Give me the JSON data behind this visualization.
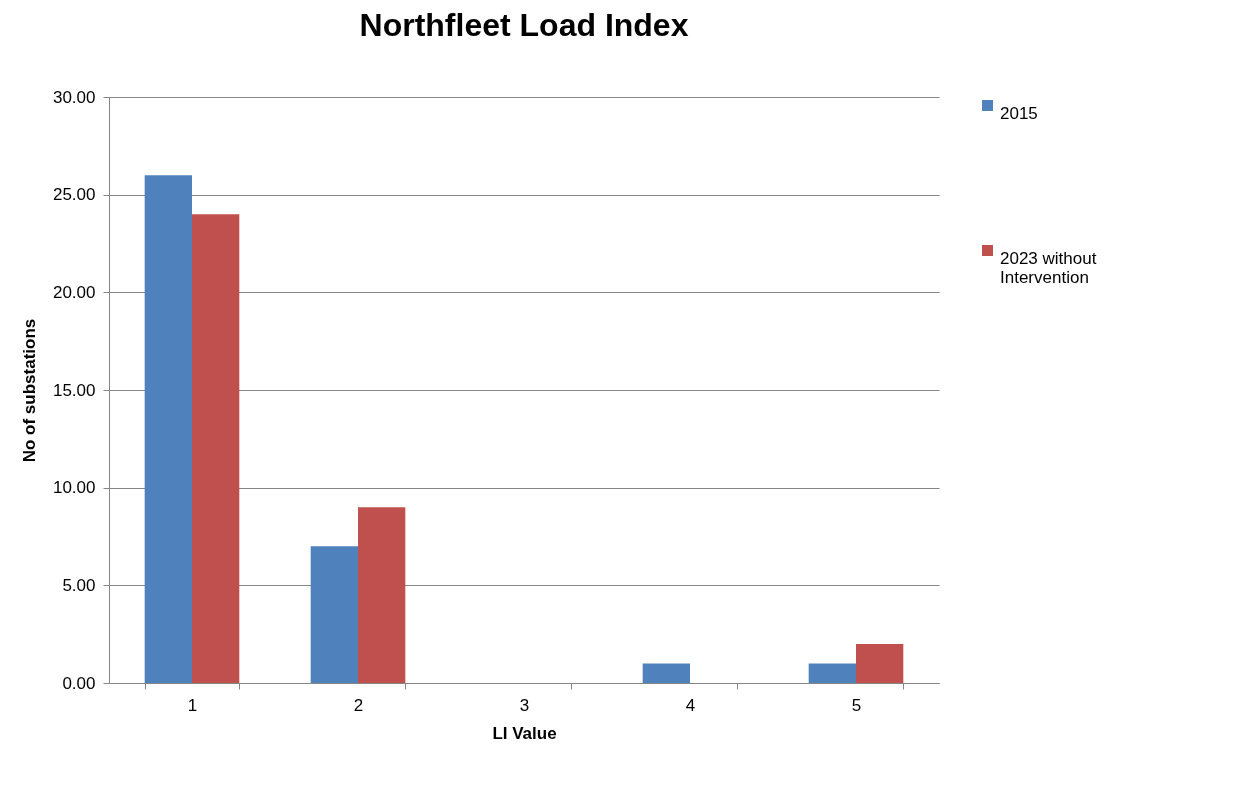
{
  "chart_data": {
    "type": "bar",
    "title": "Northfleet Load Index",
    "xlabel": "LI Value",
    "ylabel": "No of substations",
    "categories": [
      "1",
      "2",
      "3",
      "4",
      "5"
    ],
    "series": [
      {
        "name": "2015",
        "color": "#4f81bd",
        "values": [
          26,
          7,
          0,
          1,
          1
        ]
      },
      {
        "name": "2023 without Intervention",
        "color": "#c0504d",
        "values": [
          24,
          9,
          0,
          0,
          2
        ]
      }
    ],
    "ylim": [
      0,
      30
    ],
    "yticks": [
      {
        "value": 0,
        "label": "0.00"
      },
      {
        "value": 5,
        "label": "5.00"
      },
      {
        "value": 10,
        "label": "10.00"
      },
      {
        "value": 15,
        "label": "15.00"
      },
      {
        "value": 20,
        "label": "20.00"
      },
      {
        "value": 25,
        "label": "25.00"
      },
      {
        "value": 30,
        "label": "30.00"
      }
    ],
    "grid": "y",
    "legend": "right"
  }
}
